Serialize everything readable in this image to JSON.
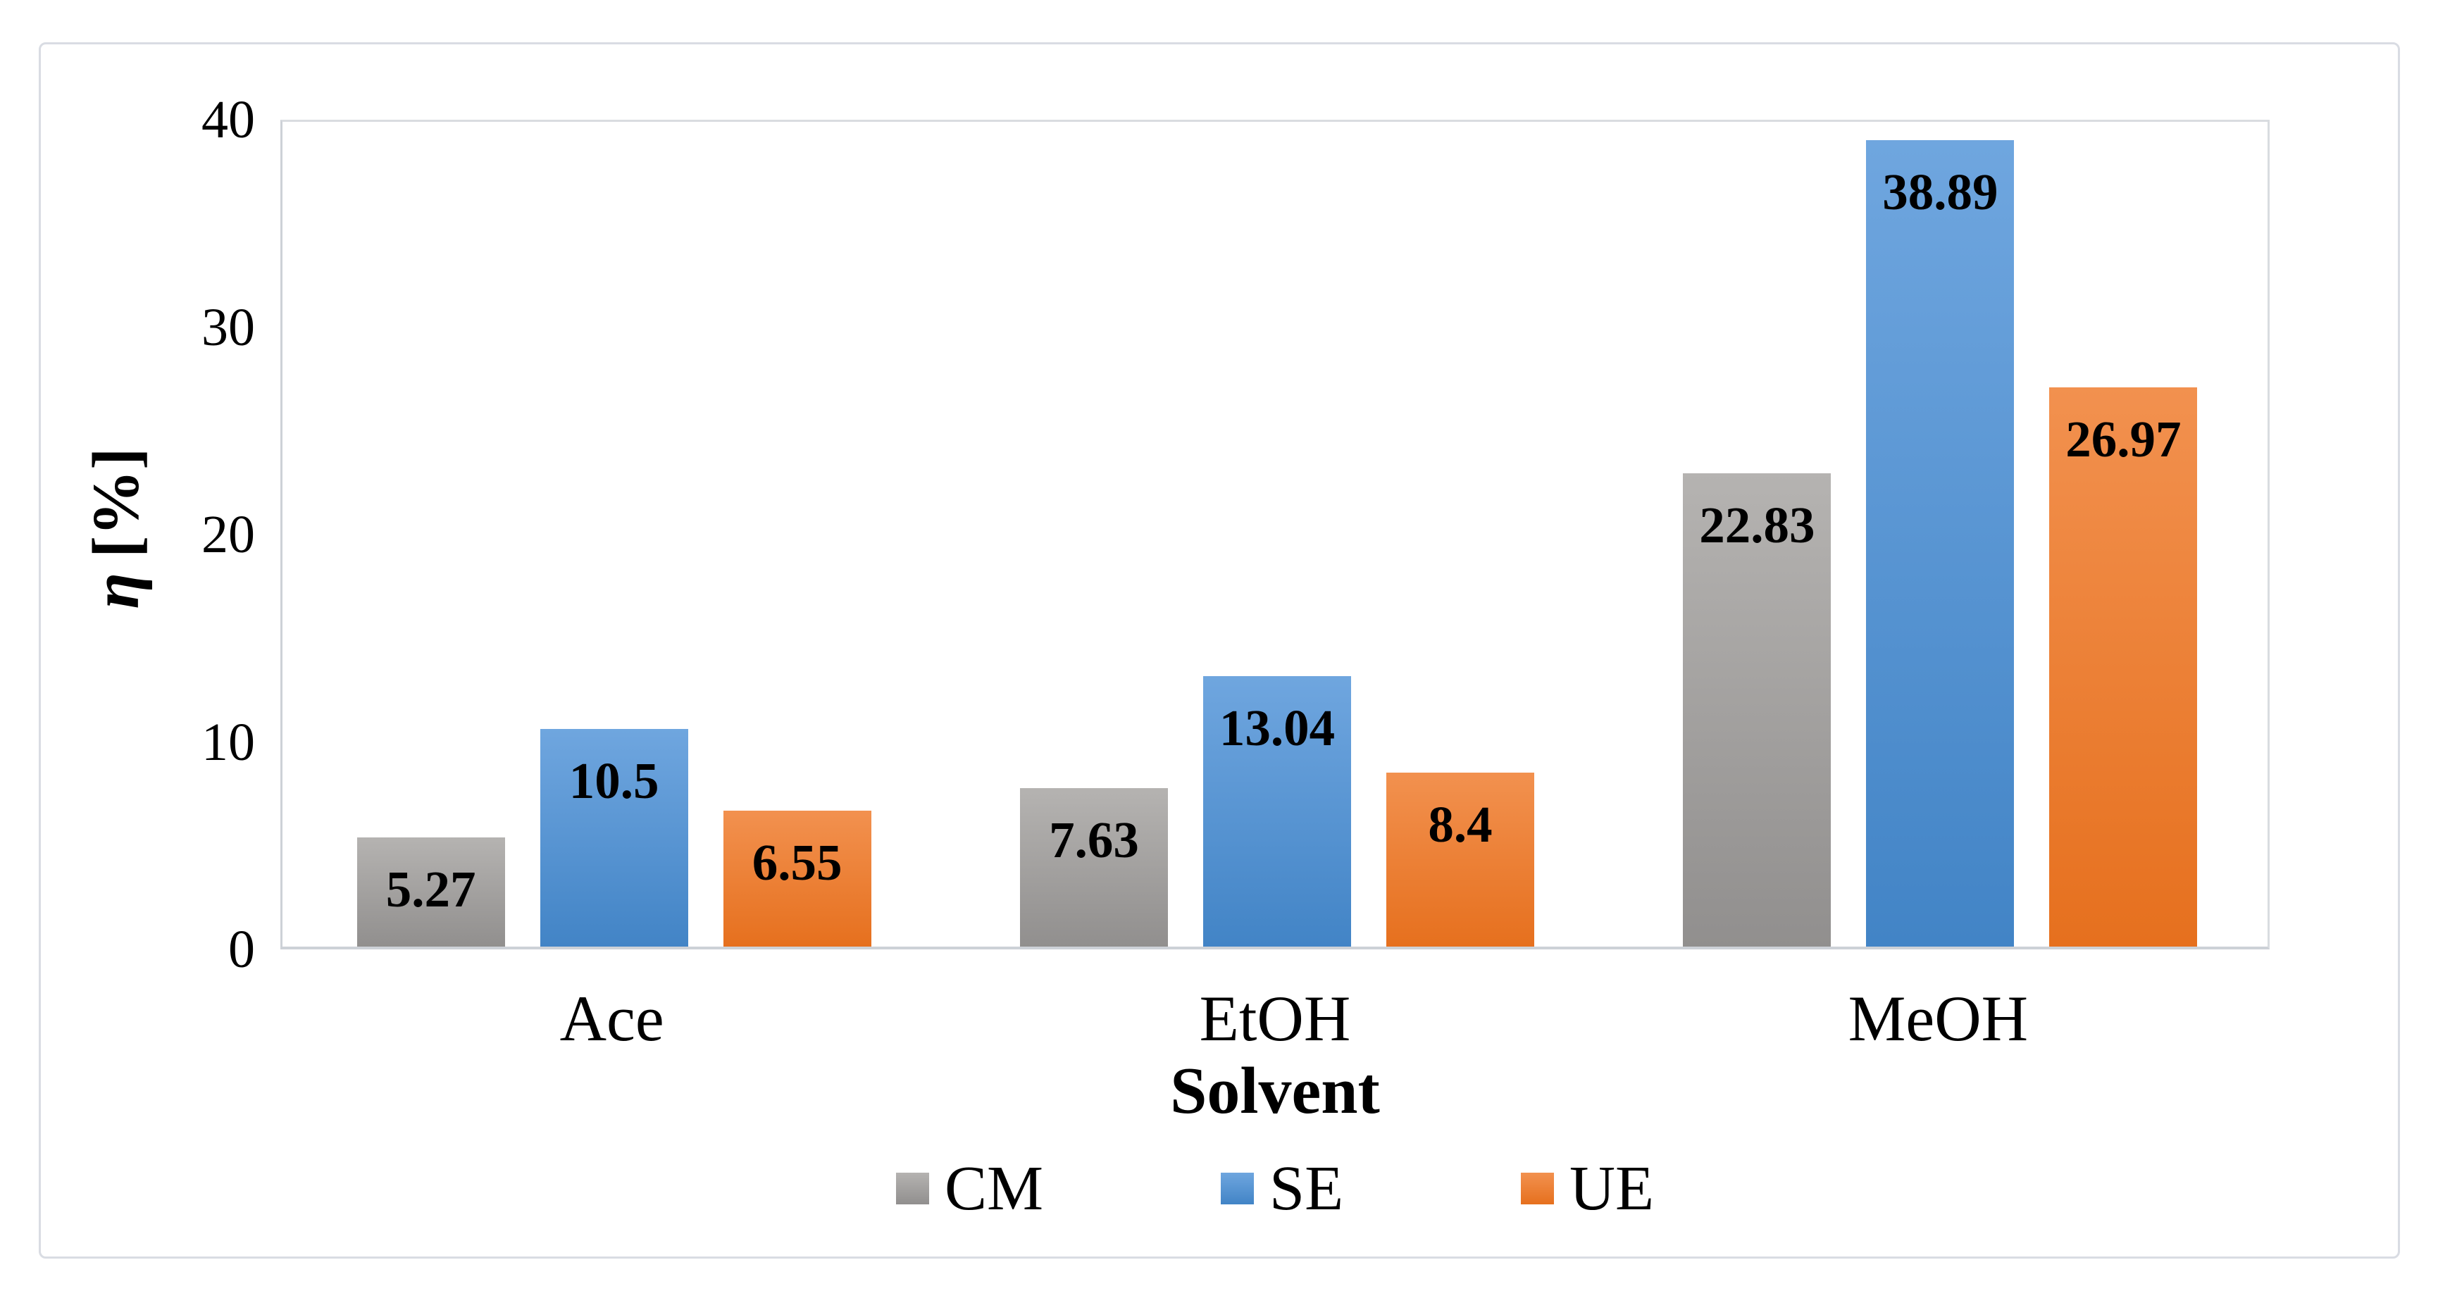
{
  "figure": {
    "background_color": "#ffffff",
    "frame_border_color": "#d9dce3",
    "plot_border_color": "#d9dce0",
    "axis_line_color": "#cdd1d7",
    "text_color": "#000000"
  },
  "chart_data": {
    "type": "bar",
    "title": "",
    "categories": [
      "Ace",
      "EtOH",
      "MeOH"
    ],
    "series": [
      {
        "name": "CM",
        "color": "#a6a6a6",
        "color_top": "#b5b3b1",
        "color_bottom": "#918f8e",
        "values": [
          5.27,
          7.63,
          22.83
        ],
        "labels": [
          "5.27",
          "7.63",
          "22.83"
        ]
      },
      {
        "name": "SE",
        "color": "#5b9bd5",
        "color_top": "#6fa6df",
        "color_bottom": "#4284c6",
        "values": [
          10.5,
          13.04,
          38.89
        ],
        "labels": [
          "10.5",
          "13.04",
          "38.89"
        ]
      },
      {
        "name": "UE",
        "color": "#ed7d31",
        "color_top": "#f2914f",
        "color_bottom": "#e6701e",
        "values": [
          6.55,
          8.4,
          26.97
        ],
        "labels": [
          "6.55",
          "8.4",
          "26.97"
        ]
      }
    ],
    "xlabel": "Solvent",
    "ylabel": "η [%]",
    "ylabel_symbol": "η",
    "ylabel_unit": "[%]",
    "ylim": [
      0,
      40
    ],
    "yticks": [
      0,
      10,
      20,
      30,
      40
    ],
    "grid": false,
    "legend_position": "bottom",
    "data_label_position": "inside-end"
  }
}
